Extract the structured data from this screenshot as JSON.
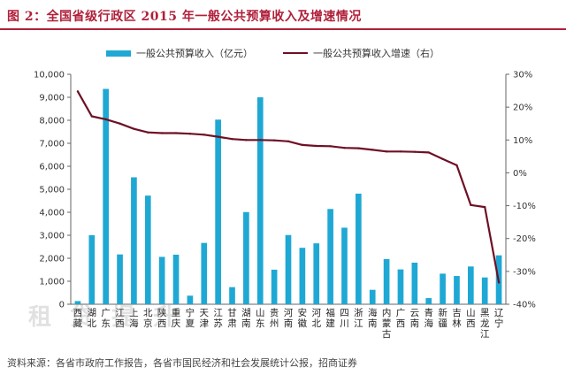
{
  "title": "图 2：全国省级行政区 2015 年一般公共预算收入及增速情况",
  "source": "资料来源：各省市政府工作报告，各省市国民经济和社会发展统计公报，招商证券",
  "watermark": "租 贷 提 升",
  "colors": {
    "bar": "#1fa8d4",
    "line": "#6e1025",
    "title": "#b0203a",
    "axis": "#666666"
  },
  "chart_data": {
    "type": "bar",
    "categories": [
      "西藏",
      "湖北",
      "广东",
      "江西",
      "上海",
      "北京",
      "陕西",
      "重庆",
      "宁夏",
      "天津",
      "江苏",
      "甘肃",
      "湖南",
      "山东",
      "贵州",
      "河南",
      "安徽",
      "河北",
      "福建",
      "四川",
      "浙江",
      "海南",
      "内蒙古",
      "广西",
      "云南",
      "青海",
      "新疆",
      "吉林",
      "山西",
      "黑龙江",
      "辽宁"
    ],
    "category_labels": [
      [
        "西",
        "藏"
      ],
      [
        "湖",
        "北"
      ],
      [
        "广",
        "东"
      ],
      [
        "江",
        "西"
      ],
      [
        "上",
        "海"
      ],
      [
        "北",
        "京"
      ],
      [
        "陕",
        "西"
      ],
      [
        "重",
        "庆"
      ],
      [
        "宁",
        "夏"
      ],
      [
        "天",
        "津"
      ],
      [
        "江",
        "苏"
      ],
      [
        "甘",
        "肃"
      ],
      [
        "湖",
        "南"
      ],
      [
        "山",
        "东"
      ],
      [
        "贵",
        "州"
      ],
      [
        "河",
        "南"
      ],
      [
        "安",
        "徽"
      ],
      [
        "河",
        "北"
      ],
      [
        "福",
        "建"
      ],
      [
        "四",
        "川"
      ],
      [
        "浙",
        "江"
      ],
      [
        "海",
        "南"
      ],
      [
        "内",
        "蒙",
        "古"
      ],
      [
        "广",
        "西"
      ],
      [
        "云",
        "南"
      ],
      [
        "青",
        "海"
      ],
      [
        "新",
        "疆"
      ],
      [
        "吉",
        "林"
      ],
      [
        "山",
        "西"
      ],
      [
        "黑",
        "龙",
        "江"
      ],
      [
        "辽",
        "宁"
      ]
    ],
    "series": [
      {
        "name": "一般公共预算收入（亿元）",
        "type": "bar",
        "axis": "left",
        "values": [
          137,
          3005,
          9365,
          2166,
          5520,
          4724,
          2060,
          2155,
          373,
          2667,
          8029,
          744,
          4008,
          8999,
          1503,
          3010,
          2454,
          2648,
          4144,
          3329,
          4810,
          628,
          1963,
          1515,
          1808,
          267,
          1331,
          1229,
          1642,
          1165,
          2127
        ]
      },
      {
        "name": "一般公共预算收入增速（右）",
        "type": "line",
        "axis": "right",
        "values": [
          24.8,
          17.2,
          16.3,
          15.0,
          13.4,
          12.3,
          12.1,
          12.1,
          11.9,
          11.6,
          11.0,
          10.3,
          10.0,
          10.0,
          9.9,
          9.6,
          8.5,
          8.2,
          8.1,
          7.6,
          7.5,
          7.0,
          6.5,
          6.5,
          6.4,
          6.2,
          4.2,
          2.3,
          -9.8,
          -10.4,
          -33.4
        ]
      }
    ],
    "y_left": {
      "ylim": [
        0,
        10000
      ],
      "ticks": [
        "0",
        "1,000",
        "2,000",
        "3,000",
        "4,000",
        "5,000",
        "6,000",
        "7,000",
        "8,000",
        "9,000",
        "10,000"
      ]
    },
    "y_right": {
      "ylim": [
        -40,
        30
      ],
      "ticks": [
        "-40%",
        "-30%",
        "-20%",
        "-10%",
        "0%",
        "10%",
        "20%",
        "30%"
      ]
    },
    "legend": "top",
    "grid": false
  }
}
